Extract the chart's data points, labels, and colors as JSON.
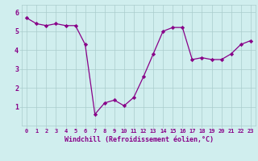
{
  "x": [
    0,
    1,
    2,
    3,
    4,
    5,
    6,
    7,
    8,
    9,
    10,
    11,
    12,
    13,
    14,
    15,
    16,
    17,
    18,
    19,
    20,
    21,
    22,
    23
  ],
  "y": [
    5.7,
    5.4,
    5.3,
    5.4,
    5.3,
    5.3,
    4.3,
    0.6,
    1.2,
    1.35,
    1.05,
    1.5,
    2.6,
    3.8,
    5.0,
    5.2,
    5.2,
    3.5,
    3.6,
    3.5,
    3.5,
    3.8,
    4.3,
    4.5
  ],
  "line_color": "#880088",
  "marker": "D",
  "markersize": 2.2,
  "linewidth": 0.9,
  "bg_color": "#d0eeee",
  "grid_color": "#aacccc",
  "xlabel": "Windchill (Refroidissement éolien,°C)",
  "xlabel_color": "#880088",
  "tick_color": "#880088",
  "ylabel_ticks": [
    1,
    2,
    3,
    4,
    5,
    6
  ],
  "xlim": [
    -0.5,
    23.5
  ],
  "ylim": [
    0.0,
    6.4
  ],
  "xticks": [
    0,
    1,
    2,
    3,
    4,
    5,
    6,
    7,
    8,
    9,
    10,
    11,
    12,
    13,
    14,
    15,
    16,
    17,
    18,
    19,
    20,
    21,
    22,
    23
  ],
  "tick_fontsize": 5.0,
  "ytick_fontsize": 6.0,
  "xlabel_fontsize": 6.0
}
